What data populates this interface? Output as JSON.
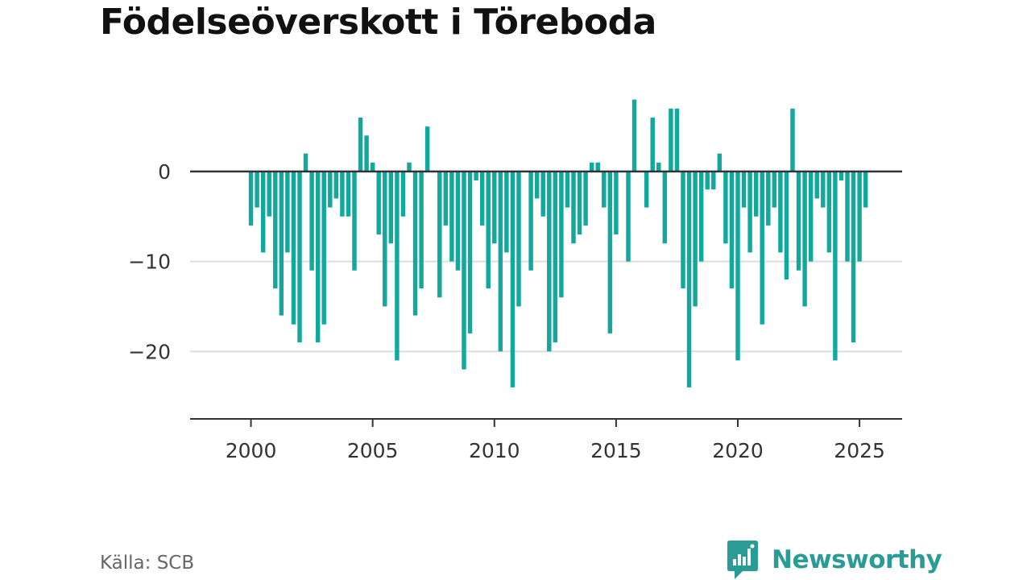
{
  "chart_data": {
    "type": "bar",
    "title": "Födelseöverskott i Töreboda",
    "xlabel": "",
    "ylabel": "",
    "x_start": 2000,
    "x_end": 2025.75,
    "step_per_year": 4,
    "xlim": [
      1997.5,
      2026.75
    ],
    "ylim": [
      -27.5,
      8.5
    ],
    "x_ticks": [
      2000,
      2005,
      2010,
      2015,
      2020,
      2025
    ],
    "x_tick_labels": [
      "2000",
      "2005",
      "2010",
      "2015",
      "2020",
      "2025"
    ],
    "y_ticks": [
      0,
      -10,
      -20
    ],
    "y_tick_labels": [
      "0",
      "−10",
      "−20"
    ],
    "grid": true,
    "bar_color": "#12a89d",
    "zero_line_color": "#333333",
    "values": [
      -6,
      -4,
      -9,
      -5,
      -13,
      -16,
      -9,
      -17,
      -19,
      2,
      -11,
      -19,
      -17,
      -4,
      -3,
      -5,
      -5,
      -11,
      6,
      4,
      1,
      -7,
      -15,
      -8,
      -21,
      -5,
      1,
      -16,
      -13,
      5,
      0,
      -14,
      -6,
      -10,
      -11,
      -22,
      -18,
      -1,
      -6,
      -13,
      -8,
      -20,
      -9,
      -24,
      -15,
      0,
      -11,
      -3,
      -5,
      -20,
      -19,
      -14,
      -4,
      -8,
      -7,
      -6,
      1,
      1,
      -4,
      -18,
      -7,
      0,
      -10,
      8,
      0,
      -4,
      6,
      1,
      -8,
      7,
      7,
      -13,
      -24,
      -15,
      -10,
      -2,
      -2,
      2,
      -8,
      -13,
      -21,
      -4,
      -9,
      -5,
      -17,
      -6,
      -4,
      -9,
      -12,
      7,
      -11,
      -15,
      -10,
      -3,
      -4,
      -9,
      -21,
      -1,
      -10,
      -19,
      -10,
      -4
    ]
  },
  "footer": {
    "source": "Källa: SCB",
    "brand": "Newsworthy",
    "brand_icon": "newsworthy-logo-icon",
    "brand_color": "#2a9c95"
  }
}
